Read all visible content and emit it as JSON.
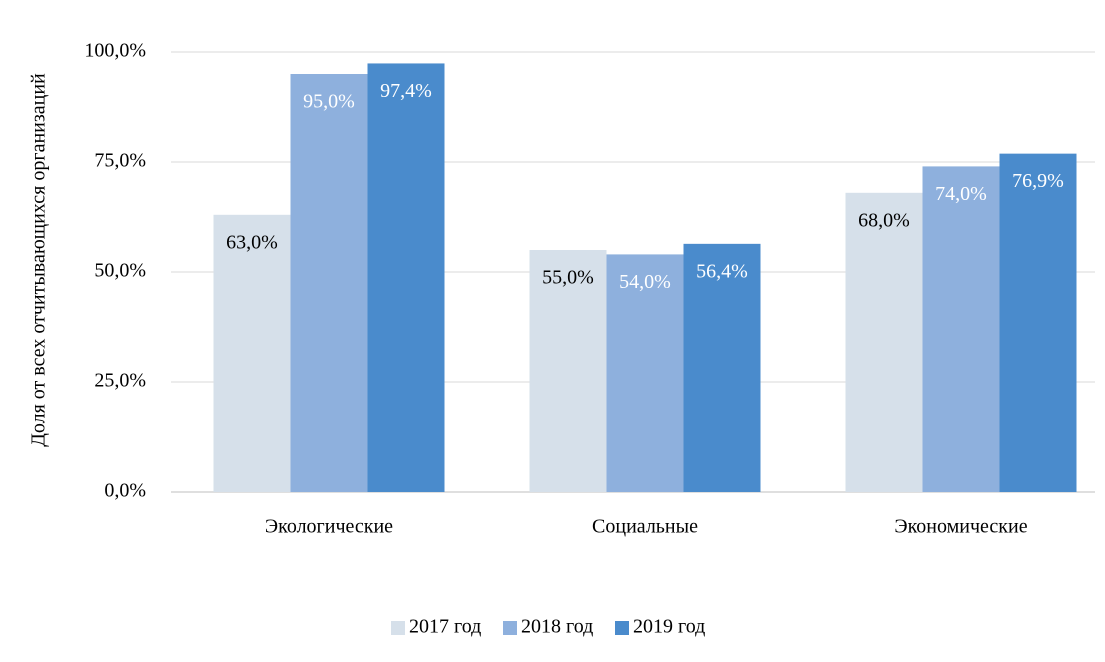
{
  "chart_data": {
    "type": "bar",
    "y_label": "Доля от всех отчитывающихся  организаций",
    "categories": [
      "Экологические",
      "Социальные",
      "Экономические"
    ],
    "series": [
      {
        "name": "2017 год",
        "color": "#d6e0ea",
        "label_color": "#000000",
        "values": [
          63.0,
          55.0,
          68.0
        ],
        "value_labels": [
          "63,0%",
          "55,0%",
          "68,0%"
        ]
      },
      {
        "name": "2018 год",
        "color": "#8eb0dd",
        "label_color": "#ffffff",
        "values": [
          95.0,
          54.0,
          74.0
        ],
        "value_labels": [
          "95,0%",
          "54,0%",
          "74,0%"
        ]
      },
      {
        "name": "2019 год",
        "color": "#4a8bcc",
        "label_color": "#ffffff",
        "values": [
          97.4,
          56.4,
          76.9
        ],
        "value_labels": [
          "97,4%",
          "56,4%",
          "76,9%"
        ]
      }
    ],
    "ylim": [
      0,
      100
    ],
    "yticks": [
      {
        "value": 0,
        "label": "0,0%"
      },
      {
        "value": 25,
        "label": "25,0%"
      },
      {
        "value": 50,
        "label": "50,0%"
      },
      {
        "value": 75,
        "label": "75,0%"
      },
      {
        "value": 100,
        "label": "100,0%"
      }
    ],
    "grid": true,
    "legend": "bottom"
  }
}
